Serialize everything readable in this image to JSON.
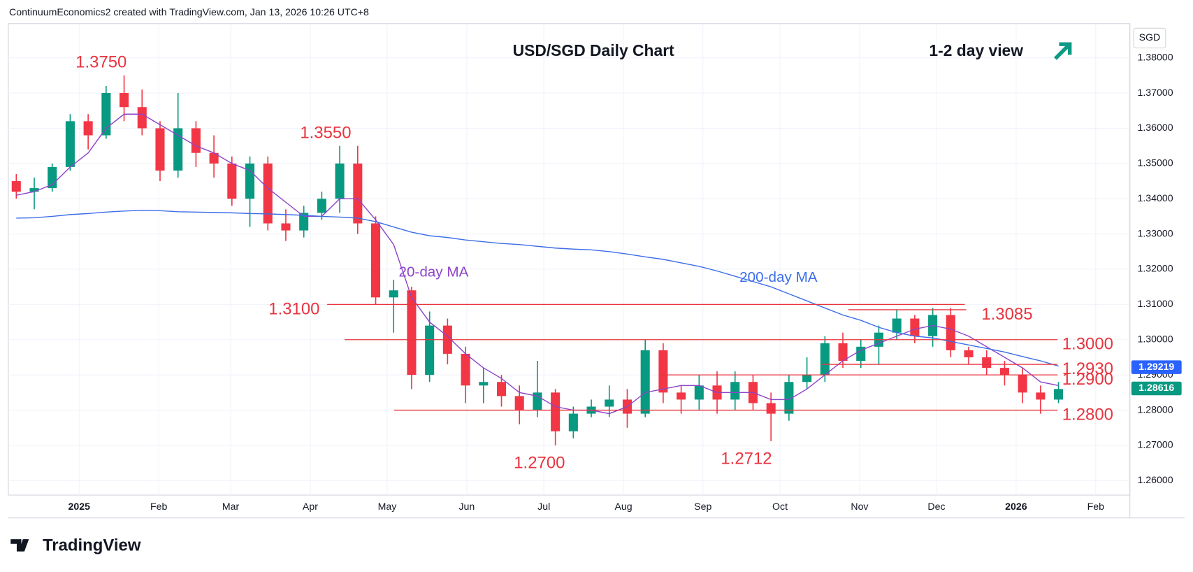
{
  "header": "ContinuumEconomics2 created with TradingView.com, Jan 13, 2026 10:26 UTC+8",
  "brand": "TradingView",
  "chart_data": {
    "type": "candlestick",
    "title": "USD/SGD Daily Chart",
    "subtitle": "1-2 day view",
    "y_axis_label": "SGD",
    "xlim": [
      -3.94,
      58.47
    ],
    "xticks": [
      {
        "value": 0,
        "label": "2025"
      },
      {
        "value": 4.43,
        "label": "Feb"
      },
      {
        "value": 8.43,
        "label": "Mar"
      },
      {
        "value": 12.86,
        "label": "Apr"
      },
      {
        "value": 17.14,
        "label": "May"
      },
      {
        "value": 21.57,
        "label": "Jun"
      },
      {
        "value": 25.86,
        "label": "Jul"
      },
      {
        "value": 30.29,
        "label": "Aug"
      },
      {
        "value": 34.71,
        "label": "Sep"
      },
      {
        "value": 39,
        "label": "Oct"
      },
      {
        "value": 43.43,
        "label": "Nov"
      },
      {
        "value": 47.71,
        "label": "Dec"
      },
      {
        "value": 52.14,
        "label": "2026"
      },
      {
        "value": 56.57,
        "label": "Feb"
      }
    ],
    "ylim": [
      1.2559,
      1.3897
    ],
    "yticks": [
      {
        "value": 1.26,
        "label": "1.26000"
      },
      {
        "value": 1.27,
        "label": "1.27000"
      },
      {
        "value": 1.28,
        "label": "1.28000"
      },
      {
        "value": 1.29,
        "label": "1.29000"
      },
      {
        "value": 1.3,
        "label": "1.30000"
      },
      {
        "value": 1.31,
        "label": "1.31000"
      },
      {
        "value": 1.32,
        "label": "1.32000"
      },
      {
        "value": 1.33,
        "label": "1.33000"
      },
      {
        "value": 1.34,
        "label": "1.34000"
      },
      {
        "value": 1.35,
        "label": "1.35000"
      },
      {
        "value": 1.36,
        "label": "1.36000"
      },
      {
        "value": 1.37,
        "label": "1.37000"
      },
      {
        "value": 1.38,
        "label": "1.38000"
      }
    ],
    "grid": true,
    "up_color": "#089981",
    "down_color": "#f23645",
    "x": [
      -3.5,
      -2.5,
      -1.5,
      -0.5,
      0.5,
      1.5,
      2.5,
      3.5,
      4.5,
      5.5,
      6.5,
      7.5,
      8.5,
      9.5,
      10.5,
      11.5,
      12.5,
      13.5,
      14.5,
      15.5,
      16.5,
      17.5,
      18.5,
      19.5,
      20.5,
      21.5,
      22.5,
      23.5,
      24.5,
      25.5,
      26.5,
      27.5,
      28.5,
      29.5,
      30.5,
      31.5,
      32.5,
      33.5,
      34.5,
      35.5,
      36.5,
      37.5,
      38.5,
      39.5,
      40.5,
      41.5,
      42.5,
      43.5,
      44.5,
      45.5,
      46.5,
      47.5,
      48.5,
      49.5,
      50.5,
      51.5,
      52.5,
      53.5,
      54.5
    ],
    "open": [
      1.345,
      1.342,
      1.343,
      1.349,
      1.362,
      1.358,
      1.37,
      1.366,
      1.36,
      1.348,
      1.36,
      1.353,
      1.35,
      1.34,
      1.35,
      1.333,
      1.331,
      1.336,
      1.34,
      1.35,
      1.333,
      1.312,
      1.314,
      1.29,
      1.304,
      1.296,
      1.287,
      1.288,
      1.284,
      1.28,
      1.285,
      1.274,
      1.279,
      1.281,
      1.283,
      1.279,
      1.297,
      1.285,
      1.283,
      1.287,
      1.283,
      1.288,
      1.282,
      1.279,
      1.288,
      1.29,
      1.299,
      1.294,
      1.298,
      1.302,
      1.306,
      1.301,
      1.307,
      1.297,
      1.295,
      1.292,
      1.29,
      1.285,
      1.283
    ],
    "high": [
      1.347,
      1.346,
      1.35,
      1.364,
      1.364,
      1.372,
      1.375,
      1.371,
      1.362,
      1.37,
      1.362,
      1.358,
      1.352,
      1.352,
      1.352,
      1.337,
      1.338,
      1.342,
      1.355,
      1.355,
      1.335,
      1.317,
      1.315,
      1.308,
      1.306,
      1.298,
      1.292,
      1.29,
      1.287,
      1.294,
      1.286,
      1.281,
      1.283,
      1.287,
      1.286,
      1.3,
      1.299,
      1.287,
      1.29,
      1.291,
      1.291,
      1.29,
      1.285,
      1.29,
      1.295,
      1.301,
      1.302,
      1.3,
      1.304,
      1.3085,
      1.307,
      1.309,
      1.309,
      1.298,
      1.297,
      1.294,
      1.292,
      1.287,
      1.288
    ],
    "low": [
      1.34,
      1.337,
      1.342,
      1.348,
      1.354,
      1.357,
      1.362,
      1.358,
      1.345,
      1.346,
      1.349,
      1.346,
      1.338,
      1.332,
      1.331,
      1.328,
      1.329,
      1.334,
      1.336,
      1.33,
      1.31,
      1.302,
      1.286,
      1.288,
      1.293,
      1.282,
      1.282,
      1.281,
      1.276,
      1.278,
      1.27,
      1.272,
      1.278,
      1.278,
      1.275,
      1.278,
      1.282,
      1.279,
      1.28,
      1.279,
      1.28,
      1.28,
      1.2712,
      1.277,
      1.286,
      1.288,
      1.292,
      1.292,
      1.293,
      1.3,
      1.299,
      1.298,
      1.295,
      1.293,
      1.29,
      1.287,
      1.282,
      1.279,
      1.282
    ],
    "close": [
      1.342,
      1.343,
      1.349,
      1.362,
      1.358,
      1.37,
      1.366,
      1.36,
      1.348,
      1.36,
      1.353,
      1.35,
      1.34,
      1.35,
      1.333,
      1.331,
      1.336,
      1.34,
      1.35,
      1.333,
      1.312,
      1.314,
      1.29,
      1.304,
      1.296,
      1.287,
      1.288,
      1.284,
      1.28,
      1.285,
      1.274,
      1.279,
      1.281,
      1.283,
      1.279,
      1.297,
      1.285,
      1.283,
      1.287,
      1.283,
      1.288,
      1.282,
      1.279,
      1.288,
      1.29,
      1.299,
      1.294,
      1.298,
      1.302,
      1.306,
      1.301,
      1.307,
      1.297,
      1.295,
      1.292,
      1.29,
      1.285,
      1.283,
      1.286
    ],
    "series": [
      {
        "name": "20-day MA",
        "color": "#8e44c9",
        "values": [
          1.341,
          1.342,
          1.344,
          1.349,
          1.353,
          1.36,
          1.364,
          1.364,
          1.361,
          1.358,
          1.355,
          1.353,
          1.35,
          1.348,
          1.343,
          1.339,
          1.335,
          1.335,
          1.34,
          1.34,
          1.334,
          1.327,
          1.312,
          1.305,
          1.301,
          1.296,
          1.292,
          1.289,
          1.285,
          1.284,
          1.281,
          1.28,
          1.28,
          1.279,
          1.281,
          1.285,
          1.286,
          1.287,
          1.287,
          1.285,
          1.285,
          1.285,
          1.283,
          1.283,
          1.286,
          1.29,
          1.294,
          1.297,
          1.299,
          1.301,
          1.303,
          1.304,
          1.303,
          1.301,
          1.298,
          1.295,
          1.292,
          1.288,
          1.287
        ]
      },
      {
        "name": "200-day MA",
        "color": "#3d6ee8",
        "values": [
          1.3345,
          1.3346,
          1.335,
          1.3355,
          1.3358,
          1.3362,
          1.3365,
          1.3367,
          1.3366,
          1.3363,
          1.3362,
          1.3361,
          1.336,
          1.3358,
          1.3357,
          1.3355,
          1.3353,
          1.335,
          1.3348,
          1.3345,
          1.3335,
          1.332,
          1.3305,
          1.3295,
          1.329,
          1.3283,
          1.3278,
          1.3273,
          1.327,
          1.3265,
          1.326,
          1.3257,
          1.3255,
          1.325,
          1.3243,
          1.3235,
          1.3228,
          1.3218,
          1.3208,
          1.3195,
          1.318,
          1.3165,
          1.315,
          1.313,
          1.311,
          1.309,
          1.307,
          1.3055,
          1.3035,
          1.302,
          1.301,
          1.3005,
          1.2995,
          1.2985,
          1.2975,
          1.2965,
          1.2952,
          1.294,
          1.2925
        ]
      }
    ],
    "levels": [
      {
        "value": 1.31,
        "label": "1.3100"
      },
      {
        "value": 1.3085,
        "label": "1.3085"
      },
      {
        "value": 1.3,
        "label": "1.3000"
      },
      {
        "value": 1.293,
        "label": "1.2930"
      },
      {
        "value": 1.29,
        "label": "1.2900"
      },
      {
        "value": 1.28,
        "label": "1.2800"
      }
    ],
    "annotations": [
      {
        "value": 1.375,
        "label": "1.3750"
      },
      {
        "value": 1.355,
        "label": "1.3550"
      },
      {
        "value": 1.27,
        "label": "1.2700"
      },
      {
        "value": 1.2712,
        "label": "1.2712"
      }
    ],
    "price_tags": [
      {
        "value": 1.29219,
        "label": "1.29219",
        "color": "#2962ff"
      },
      {
        "value": 1.28616,
        "label": "1.28616",
        "color": "#089981"
      }
    ]
  }
}
